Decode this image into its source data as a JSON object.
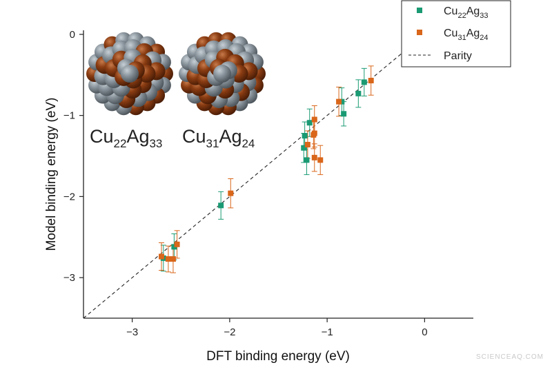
{
  "chart_data": {
    "type": "scatter",
    "title": "",
    "xlabel": "DFT binding energy (eV)",
    "ylabel": "Model binding energy (eV)",
    "xlim": [
      -3.5,
      0.5
    ],
    "ylim": [
      -3.5,
      0.05
    ],
    "xticks": [
      -3,
      -2,
      -1,
      0
    ],
    "yticks": [
      0,
      -1,
      -2,
      -3
    ],
    "grid": false,
    "legend_position": "top-right",
    "colors": {
      "cu22": "#1a9a73",
      "cu31": "#d9661a",
      "parity": "#222222"
    },
    "series": [
      {
        "name_base": "Cu",
        "name_sub1": "22",
        "name_mid": "Ag",
        "name_sub2": "33",
        "color": "#1a9a73",
        "marker": "square",
        "points": [
          {
            "x": -2.68,
            "y": -2.76,
            "err": 0.16
          },
          {
            "x": -2.57,
            "y": -2.62,
            "err": 0.16
          },
          {
            "x": -2.09,
            "y": -2.11,
            "err": 0.17
          },
          {
            "x": -1.24,
            "y": -1.4,
            "err": 0.18
          },
          {
            "x": -1.23,
            "y": -1.25,
            "err": 0.17
          },
          {
            "x": -1.21,
            "y": -1.55,
            "err": 0.18
          },
          {
            "x": -1.18,
            "y": -1.09,
            "err": 0.17
          },
          {
            "x": -0.85,
            "y": -0.83,
            "err": 0.17
          },
          {
            "x": -0.83,
            "y": -0.98,
            "err": 0.15
          },
          {
            "x": -0.68,
            "y": -0.73,
            "err": 0.17
          },
          {
            "x": -0.62,
            "y": -0.59,
            "err": 0.17
          }
        ]
      },
      {
        "name_base": "Cu",
        "name_sub1": "31",
        "name_mid": "Ag",
        "name_sub2": "24",
        "color": "#d9661a",
        "marker": "square",
        "points": [
          {
            "x": -2.7,
            "y": -2.74,
            "err": 0.17
          },
          {
            "x": -2.63,
            "y": -2.77,
            "err": 0.16
          },
          {
            "x": -2.58,
            "y": -2.77,
            "err": 0.17
          },
          {
            "x": -2.54,
            "y": -2.59,
            "err": 0.17
          },
          {
            "x": -1.99,
            "y": -1.96,
            "err": 0.18
          },
          {
            "x": -1.2,
            "y": -1.36,
            "err": 0.17
          },
          {
            "x": -1.14,
            "y": -1.24,
            "err": 0.17
          },
          {
            "x": -1.13,
            "y": -1.22,
            "err": 0.17
          },
          {
            "x": -1.13,
            "y": -1.05,
            "err": 0.17
          },
          {
            "x": -1.13,
            "y": -1.52,
            "err": 0.17
          },
          {
            "x": -1.07,
            "y": -1.55,
            "err": 0.18
          },
          {
            "x": -0.88,
            "y": -0.83,
            "err": 0.18
          },
          {
            "x": -0.55,
            "y": -0.57,
            "err": 0.18
          }
        ]
      }
    ],
    "parity_label": "Parity",
    "clusters": [
      {
        "base": "Cu",
        "sub1": "22",
        "mid": "Ag",
        "sub2": "33"
      },
      {
        "base": "Cu",
        "sub1": "31",
        "mid": "Ag",
        "sub2": "24"
      }
    ]
  },
  "watermark": "SCIENCEAQ.COM"
}
